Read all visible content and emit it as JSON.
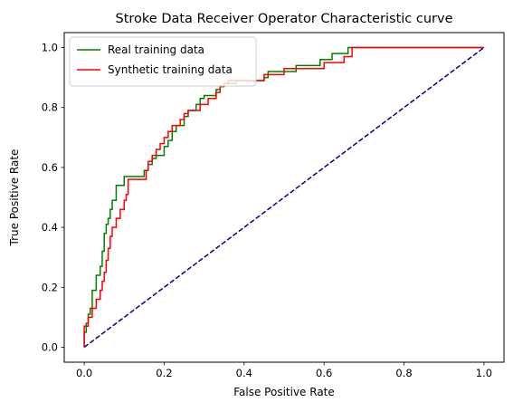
{
  "chart_data": {
    "type": "line",
    "title": "Stroke Data Receiver Operator Characteristic curve",
    "xlabel": "False Positive Rate",
    "ylabel": "True Positive Rate",
    "xlim": [
      -0.05,
      1.05
    ],
    "ylim": [
      -0.05,
      1.05
    ],
    "xticks": [
      0.0,
      0.2,
      0.4,
      0.6,
      0.8,
      1.0
    ],
    "yticks": [
      0.0,
      0.2,
      0.4,
      0.6,
      0.8,
      1.0
    ],
    "xtick_labels": [
      "0.0",
      "0.2",
      "0.4",
      "0.6",
      "0.8",
      "1.0"
    ],
    "ytick_labels": [
      "0.0",
      "0.2",
      "0.4",
      "0.6",
      "0.8",
      "1.0"
    ],
    "grid": false,
    "legend_position": "top-left",
    "series": [
      {
        "name": "Real training data",
        "color": "#008000",
        "style": "step",
        "x": [
          0.0,
          0.0,
          0.005,
          0.005,
          0.01,
          0.01,
          0.015,
          0.015,
          0.02,
          0.02,
          0.03,
          0.03,
          0.04,
          0.04,
          0.045,
          0.045,
          0.05,
          0.05,
          0.055,
          0.055,
          0.06,
          0.06,
          0.065,
          0.065,
          0.07,
          0.07,
          0.08,
          0.08,
          0.1,
          0.1,
          0.11,
          0.11,
          0.15,
          0.15,
          0.16,
          0.16,
          0.17,
          0.17,
          0.18,
          0.18,
          0.2,
          0.2,
          0.21,
          0.21,
          0.22,
          0.22,
          0.23,
          0.23,
          0.25,
          0.25,
          0.26,
          0.26,
          0.28,
          0.28,
          0.29,
          0.29,
          0.3,
          0.3,
          0.33,
          0.33,
          0.34,
          0.34,
          0.35,
          0.35,
          0.38,
          0.38,
          0.45,
          0.45,
          0.46,
          0.46,
          0.53,
          0.53,
          0.59,
          0.59,
          0.62,
          0.62,
          0.66,
          0.66,
          1.0
        ],
        "y": [
          0.0,
          0.05,
          0.05,
          0.08,
          0.08,
          0.11,
          0.11,
          0.13,
          0.13,
          0.19,
          0.19,
          0.24,
          0.24,
          0.27,
          0.27,
          0.32,
          0.32,
          0.38,
          0.38,
          0.41,
          0.41,
          0.43,
          0.43,
          0.46,
          0.46,
          0.49,
          0.49,
          0.54,
          0.54,
          0.57,
          0.57,
          0.57,
          0.57,
          0.59,
          0.59,
          0.61,
          0.61,
          0.63,
          0.63,
          0.64,
          0.64,
          0.67,
          0.67,
          0.69,
          0.69,
          0.72,
          0.72,
          0.74,
          0.74,
          0.77,
          0.77,
          0.79,
          0.79,
          0.81,
          0.81,
          0.83,
          0.83,
          0.84,
          0.84,
          0.86,
          0.86,
          0.87,
          0.87,
          0.88,
          0.88,
          0.89,
          0.89,
          0.9,
          0.9,
          0.92,
          0.92,
          0.94,
          0.94,
          0.96,
          0.96,
          0.98,
          0.98,
          1.0,
          1.0
        ]
      },
      {
        "name": "Synthetic training data",
        "color": "#ff0000",
        "style": "step",
        "x": [
          0.0,
          0.0,
          0.01,
          0.01,
          0.02,
          0.02,
          0.03,
          0.03,
          0.04,
          0.04,
          0.045,
          0.045,
          0.05,
          0.05,
          0.055,
          0.055,
          0.06,
          0.06,
          0.065,
          0.065,
          0.07,
          0.07,
          0.08,
          0.08,
          0.09,
          0.09,
          0.1,
          0.1,
          0.105,
          0.105,
          0.11,
          0.11,
          0.155,
          0.155,
          0.16,
          0.16,
          0.17,
          0.17,
          0.18,
          0.18,
          0.19,
          0.19,
          0.2,
          0.2,
          0.21,
          0.21,
          0.22,
          0.22,
          0.24,
          0.24,
          0.25,
          0.25,
          0.26,
          0.26,
          0.29,
          0.29,
          0.31,
          0.31,
          0.33,
          0.33,
          0.34,
          0.34,
          0.35,
          0.35,
          0.36,
          0.36,
          0.45,
          0.45,
          0.5,
          0.5,
          0.6,
          0.6,
          0.65,
          0.65,
          0.67,
          0.67,
          1.0
        ],
        "y": [
          0.0,
          0.07,
          0.07,
          0.1,
          0.1,
          0.13,
          0.13,
          0.16,
          0.16,
          0.19,
          0.19,
          0.22,
          0.22,
          0.25,
          0.25,
          0.29,
          0.29,
          0.33,
          0.33,
          0.37,
          0.37,
          0.4,
          0.4,
          0.43,
          0.43,
          0.46,
          0.46,
          0.49,
          0.49,
          0.51,
          0.51,
          0.56,
          0.56,
          0.59,
          0.59,
          0.62,
          0.62,
          0.64,
          0.64,
          0.66,
          0.66,
          0.68,
          0.68,
          0.7,
          0.7,
          0.72,
          0.72,
          0.74,
          0.74,
          0.76,
          0.76,
          0.78,
          0.78,
          0.79,
          0.79,
          0.81,
          0.81,
          0.83,
          0.83,
          0.85,
          0.85,
          0.87,
          0.87,
          0.88,
          0.88,
          0.89,
          0.89,
          0.91,
          0.91,
          0.93,
          0.93,
          0.95,
          0.95,
          0.97,
          0.97,
          1.0,
          1.0
        ]
      },
      {
        "name": "",
        "color": "#00008b",
        "style": "dashed",
        "x": [
          0.0,
          1.0
        ],
        "y": [
          0.0,
          1.0
        ]
      }
    ]
  }
}
